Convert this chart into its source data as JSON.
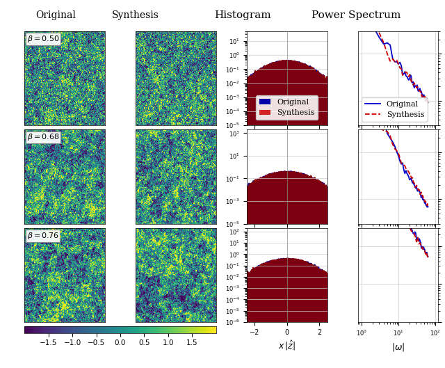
{
  "col_titles": [
    "Original",
    "Synthesis",
    "Histogram",
    "Power Spectrum"
  ],
  "row_labels": [
    "\\beta = 0.50",
    "\\beta = 0.68",
    "\\beta = 0.76"
  ],
  "beta_values": [
    0.5,
    0.68,
    0.76
  ],
  "colormap": "viridis",
  "clim": [
    -2.0,
    2.0
  ],
  "colorbar_ticks": [
    -1.5,
    -1.0,
    -0.5,
    0.0,
    0.5,
    1.0,
    1.5
  ],
  "hist_xlim": [
    -2.5,
    2.5
  ],
  "hist_ylim_rows": [
    [
      1e-05,
      50
    ],
    [
      1e-05,
      2000
    ],
    [
      1e-06,
      200
    ]
  ],
  "ps_ylim_rows": [
    [
      3000.0,
      300000.0
    ],
    [
      3000.0,
      300000.0
    ],
    [
      100.0,
      30000.0
    ]
  ],
  "ps_xlim": [
    0.8,
    120
  ],
  "original_color": "#0000CC",
  "synthesis_color": "#CC0000",
  "orig_fill_color": "#0000AA",
  "synth_fill_color": "#8B0000",
  "bg_color": "#f0f0f0",
  "image_size": 128,
  "noise_seeds_orig": [
    1,
    3,
    5
  ],
  "noise_seeds_synth": [
    2,
    4,
    6
  ]
}
